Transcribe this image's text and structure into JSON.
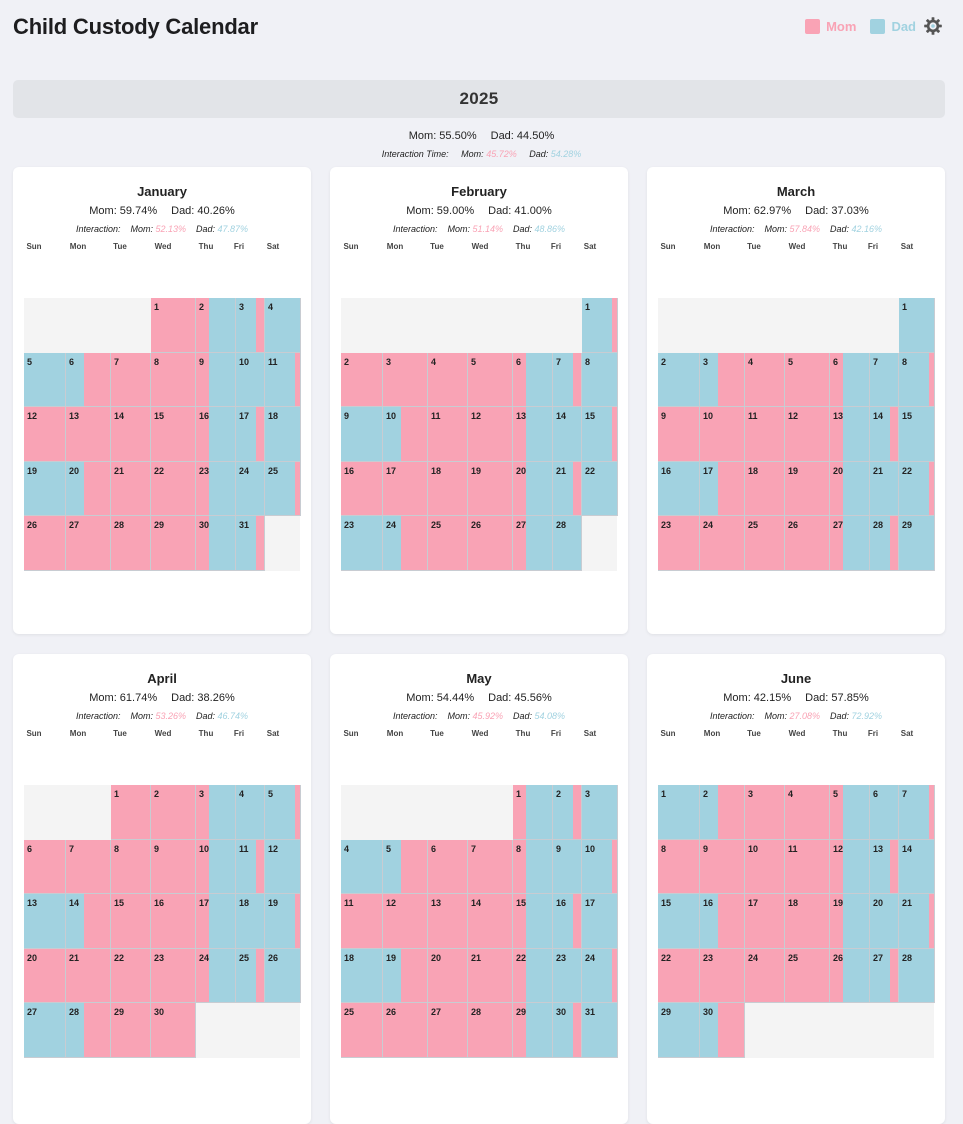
{
  "app": {
    "title": "Child Custody Calendar"
  },
  "legend": {
    "items": [
      {
        "label": "Mom",
        "color": "#f9a3b5"
      },
      {
        "label": "Dad",
        "color": "#a1d2e0"
      }
    ],
    "settings_icon": "gear-icon"
  },
  "colors": {
    "mom": "#f9a3b5",
    "dad": "#a1d2e0",
    "empty": "#f4f4f4"
  },
  "year": {
    "label": "2025",
    "mom_line": "Mom: 55.50%",
    "dad_line": "Dad: 44.50%",
    "interaction_label": "Interaction Time:",
    "interaction_mom_label": "Mom:",
    "interaction_mom": "45.72%",
    "interaction_dad_label": "Dad:",
    "interaction_dad": "54.28%"
  },
  "weekday_headers": [
    "Sun",
    "Mon",
    "Tue",
    "Wed",
    "Thu",
    "Fri",
    "Sat"
  ],
  "months": [
    {
      "name": "January",
      "mom": "Mom: 59.74%",
      "dad": "Dad: 40.26%",
      "interaction_label": "Interaction:",
      "imom_label": "Mom:",
      "imom": "52.13%",
      "idad_label": "Dad:",
      "idad": "47.87%",
      "first_weekday": 3,
      "days": 31
    },
    {
      "name": "February",
      "mom": "Mom: 59.00%",
      "dad": "Dad: 41.00%",
      "interaction_label": "Interaction:",
      "imom_label": "Mom:",
      "imom": "51.14%",
      "idad_label": "Dad:",
      "idad": "48.86%",
      "first_weekday": 6,
      "days": 28
    },
    {
      "name": "March",
      "mom": "Mom: 62.97%",
      "dad": "Dad: 37.03%",
      "interaction_label": "Interaction:",
      "imom_label": "Mom:",
      "imom": "57.84%",
      "idad_label": "Dad:",
      "idad": "42.16%",
      "first_weekday": 6,
      "days": 31
    },
    {
      "name": "April",
      "mom": "Mom: 61.74%",
      "dad": "Dad: 38.26%",
      "interaction_label": "Interaction:",
      "imom_label": "Mom:",
      "imom": "53.26%",
      "idad_label": "Dad:",
      "idad": "46.74%",
      "first_weekday": 2,
      "days": 30
    },
    {
      "name": "May",
      "mom": "Mom: 54.44%",
      "dad": "Dad: 45.56%",
      "interaction_label": "Interaction:",
      "imom_label": "Mom:",
      "imom": "45.92%",
      "idad_label": "Dad:",
      "idad": "54.08%",
      "first_weekday": 4,
      "days": 31
    },
    {
      "name": "June",
      "mom": "Mom: 42.15%",
      "dad": "Dad: 57.85%",
      "interaction_label": "Interaction:",
      "imom_label": "Mom:",
      "imom": "27.08%",
      "idad_label": "Dad:",
      "idad": "72.92%",
      "first_weekday": 0,
      "days": 30
    }
  ]
}
